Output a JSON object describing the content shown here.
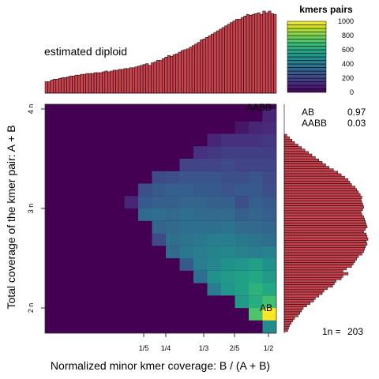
{
  "labels": {
    "ylabel": "Total coverage of the kmer pair: A + B",
    "xlabel": "Normalized minor kmer coverage: B / (A + B)",
    "top_left": "estimated diploid",
    "aabb_corner": "AABB",
    "ab_corner": "AB",
    "n_label": "1n =",
    "n_value": "203",
    "legend_title": "kmers pairs"
  },
  "colors": {
    "histogram_fill": "#c8424e",
    "viridis": [
      "#440154",
      "#482576",
      "#414487",
      "#35608d",
      "#2a788e",
      "#21918c",
      "#22a884",
      "#43bf71",
      "#7ad151",
      "#bddf26",
      "#fde725"
    ]
  },
  "chart_data": {
    "type": "heatmap",
    "x_ticks": [
      {
        "label": "1/5",
        "value": 0.2
      },
      {
        "label": "1/4",
        "value": 0.25
      },
      {
        "label": "1/3",
        "value": 0.3333
      },
      {
        "label": "2/5",
        "value": 0.4
      },
      {
        "label": "1/2",
        "value": 0.5
      }
    ],
    "y_ticks": [
      {
        "label": "2 n",
        "value": 2
      },
      {
        "label": "3 n",
        "value": 3
      },
      {
        "label": "4 n",
        "value": 4
      }
    ],
    "xlim": [
      0,
      0.5
    ],
    "ylim": [
      1.75,
      4.05
    ],
    "grid": "off",
    "col_edges": [
      0.5,
      0.486,
      0.472,
      0.458,
      0.444,
      0.43,
      0.416,
      0.402,
      0.388,
      0.374,
      0.36,
      0.346,
      0.332,
      0.318,
      0.304,
      0.29,
      0.276
    ],
    "row_edges": [
      1.75,
      1.875,
      2.0,
      2.125,
      2.25,
      2.375,
      2.5,
      2.625,
      2.75,
      2.875,
      3.0,
      3.125,
      3.25,
      3.375,
      3.5,
      3.625,
      3.75,
      3.875,
      4.0
    ],
    "cells": [
      [
        480,
        0,
        0,
        0,
        0,
        0,
        0,
        0,
        0,
        0,
        0,
        0,
        0,
        0,
        0,
        0
      ],
      [
        1000,
        720,
        0,
        0,
        0,
        0,
        0,
        0,
        0,
        0,
        0,
        0,
        0,
        0,
        0,
        0
      ],
      [
        700,
        620,
        540,
        0,
        0,
        0,
        0,
        0,
        0,
        0,
        0,
        0,
        0,
        0,
        0,
        0
      ],
      [
        600,
        640,
        560,
        520,
        420,
        0,
        0,
        0,
        0,
        0,
        0,
        0,
        0,
        0,
        0,
        0
      ],
      [
        540,
        600,
        560,
        540,
        500,
        360,
        0,
        0,
        0,
        0,
        0,
        0,
        0,
        0,
        0,
        0
      ],
      [
        500,
        560,
        520,
        500,
        460,
        420,
        280,
        0,
        0,
        0,
        0,
        0,
        0,
        0,
        0,
        0
      ],
      [
        440,
        420,
        440,
        460,
        440,
        420,
        400,
        340,
        0,
        0,
        0,
        0,
        0,
        0,
        0,
        0
      ],
      [
        360,
        380,
        400,
        420,
        420,
        400,
        380,
        360,
        220,
        0,
        0,
        0,
        0,
        0,
        0,
        0
      ],
      [
        320,
        340,
        340,
        380,
        360,
        360,
        360,
        340,
        320,
        0,
        0,
        0,
        0,
        0,
        0,
        0
      ],
      [
        300,
        320,
        300,
        340,
        340,
        340,
        360,
        340,
        360,
        340,
        0,
        0,
        0,
        0,
        0,
        0
      ],
      [
        280,
        300,
        240,
        300,
        300,
        320,
        320,
        300,
        300,
        280,
        100,
        0,
        0,
        0,
        0,
        0
      ],
      [
        240,
        280,
        280,
        260,
        280,
        280,
        300,
        300,
        280,
        240,
        0,
        0,
        0,
        0,
        0,
        0
      ],
      [
        220,
        260,
        240,
        240,
        260,
        260,
        260,
        240,
        220,
        0,
        0,
        0,
        0,
        0,
        0,
        0
      ],
      [
        200,
        200,
        200,
        220,
        200,
        200,
        200,
        0,
        0,
        0,
        0,
        0,
        0,
        0,
        0,
        0
      ],
      [
        180,
        180,
        180,
        180,
        160,
        140,
        0,
        0,
        0,
        0,
        0,
        0,
        0,
        0,
        0,
        0
      ],
      [
        160,
        140,
        140,
        140,
        100,
        0,
        0,
        0,
        0,
        0,
        0,
        0,
        0,
        0,
        0,
        0
      ],
      [
        120,
        100,
        60,
        0,
        0,
        0,
        0,
        0,
        0,
        0,
        0,
        0,
        0,
        0,
        0,
        0
      ],
      [
        100,
        0,
        0,
        0,
        0,
        0,
        0,
        0,
        0,
        0,
        0,
        0,
        0,
        0,
        0,
        0
      ]
    ],
    "top_histogram": [
      14,
      14,
      16,
      17,
      17,
      18,
      19,
      19,
      20,
      21,
      21,
      22,
      22,
      23,
      23,
      24,
      24,
      24,
      25,
      25,
      25,
      26,
      27,
      26,
      27,
      28,
      28,
      29,
      29,
      30,
      30,
      31,
      31,
      32,
      33,
      34,
      35,
      36,
      34,
      37,
      38,
      40,
      40,
      42,
      44,
      46,
      45,
      47,
      48,
      50,
      52,
      53,
      54,
      56,
      58,
      60,
      62,
      65,
      66,
      68,
      70,
      72,
      74,
      76,
      78,
      80,
      82,
      84,
      86,
      88,
      90,
      90,
      92,
      94,
      96,
      95,
      96,
      97,
      98,
      96,
      100,
      98,
      100,
      97,
      96
    ],
    "right_histogram": [
      3,
      6,
      9,
      12,
      16,
      20,
      24,
      28,
      32,
      36,
      40,
      44,
      48,
      52,
      57,
      62,
      66,
      70,
      74,
      76,
      78,
      82,
      84,
      86,
      88,
      90,
      89,
      90,
      91,
      92,
      91,
      89,
      90,
      92,
      93,
      94,
      95,
      96,
      94,
      92,
      95,
      96,
      97,
      95,
      96,
      94,
      93,
      92,
      90,
      86,
      84,
      82,
      80,
      78,
      72,
      68,
      74,
      68,
      66,
      60,
      58,
      56,
      50,
      46,
      44,
      40,
      36,
      34,
      30,
      26,
      22,
      20,
      18,
      16,
      12,
      10,
      8,
      6,
      5,
      4
    ],
    "legend": {
      "title": "kmers pairs",
      "ticks": [
        0,
        200,
        400,
        600,
        800,
        1000
      ],
      "max": 1000
    },
    "model_table": [
      {
        "label": "AB",
        "value": "0.97"
      },
      {
        "label": "AABB",
        "value": "0.03"
      }
    ]
  }
}
